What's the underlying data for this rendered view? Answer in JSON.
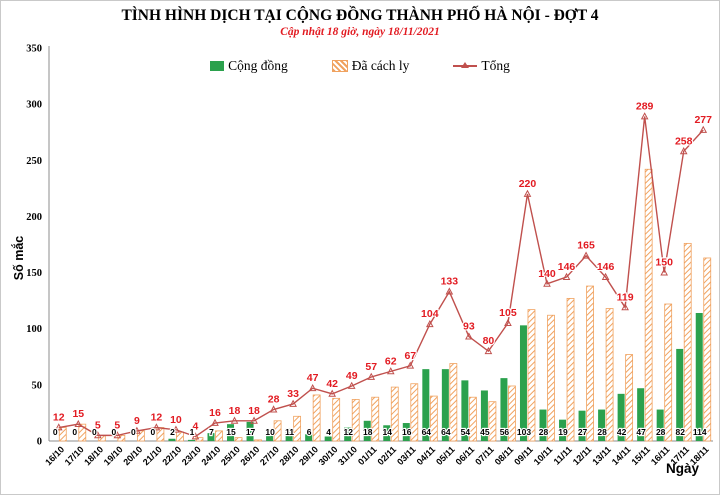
{
  "title": "TÌNH HÌNH DỊCH TẠI CỘNG ĐỒNG THÀNH PHỐ HÀ NỘI - ĐỢT 4",
  "subtitle": "Cập nhật 18 giờ, ngày 18/11/2021",
  "legend": [
    {
      "label": "Cộng đồng",
      "swatch": "green-solid"
    },
    {
      "label": "Đã cách ly",
      "swatch": "orange-hatch"
    },
    {
      "label": "Tổng",
      "swatch": "red-line-marker"
    }
  ],
  "colors": {
    "green": "#2ba14d",
    "orange": "#f0a25f",
    "line": "#c0504d",
    "label_red": "#e21b22",
    "axis": "#8c8c8c"
  },
  "chart_data": {
    "type": "bar",
    "title": "TÌNH HÌNH DỊCH TẠI CỘNG ĐỒNG THÀNH PHỐ HÀ NỘI - ĐỢT 4",
    "subtitle": "Cập nhật 18 giờ, ngày 18/11/2021",
    "xlabel": "Ngày",
    "ylabel": "Số mắc",
    "ylim": [
      0,
      350
    ],
    "yticks": [
      0,
      50,
      100,
      150,
      200,
      250,
      300,
      350
    ],
    "grid": false,
    "legend_position": "top",
    "categories": [
      "16/10",
      "17/10",
      "18/10",
      "19/10",
      "20/10",
      "21/10",
      "22/10",
      "23/10",
      "24/10",
      "25/10",
      "26/10",
      "27/10",
      "28/10",
      "29/10",
      "30/10",
      "31/10",
      "01/11",
      "02/11",
      "03/11",
      "04/11",
      "05/11",
      "06/11",
      "07/11",
      "08/11",
      "09/11",
      "10/11",
      "11/11",
      "12/11",
      "13/11",
      "14/11",
      "15/11",
      "16/11",
      "17/11",
      "18/11"
    ],
    "series": [
      {
        "name": "Cộng đồng",
        "type": "bar",
        "color": "#2ba14d",
        "values": [
          0,
          0,
          0,
          0,
          0,
          0,
          2,
          1,
          7,
          15,
          17,
          10,
          11,
          6,
          4,
          12,
          18,
          14,
          16,
          64,
          64,
          54,
          45,
          56,
          103,
          28,
          19,
          27,
          28,
          42,
          47,
          28,
          82,
          114
        ]
      },
      {
        "name": "Đã cách ly",
        "type": "bar",
        "color": "#f0a25f",
        "pattern": "diagonal-hatch",
        "values": [
          12,
          15,
          5,
          5,
          9,
          12,
          8,
          3,
          9,
          3,
          1,
          18,
          22,
          41,
          38,
          37,
          39,
          48,
          51,
          40,
          69,
          39,
          35,
          49,
          117,
          112,
          127,
          138,
          118,
          77,
          242,
          122,
          176,
          163
        ]
      },
      {
        "name": "Tổng",
        "type": "line",
        "color": "#c0504d",
        "marker": "triangle",
        "values": [
          12,
          15,
          5,
          5,
          9,
          12,
          10,
          4,
          16,
          18,
          18,
          28,
          33,
          47,
          42,
          49,
          57,
          62,
          67,
          104,
          133,
          93,
          80,
          105,
          220,
          140,
          146,
          165,
          146,
          119,
          289,
          150,
          258,
          277
        ]
      }
    ]
  }
}
